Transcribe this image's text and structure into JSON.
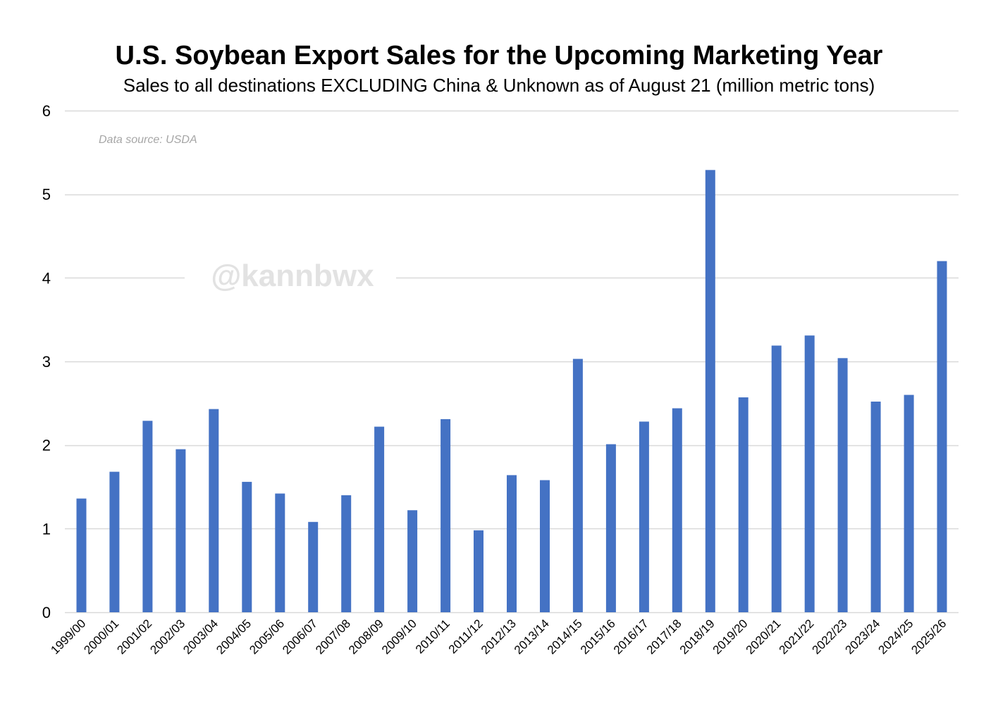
{
  "chart_data": {
    "type": "bar",
    "title": "U.S. Soybean Export Sales for the Upcoming Marketing Year",
    "subtitle": "Sales to all destinations EXCLUDING China & Unknown as of August 21 (million metric tons)",
    "source_note": "Data source: USDA",
    "watermark": "@kannbwx",
    "xlabel": "",
    "ylabel": "",
    "ylim": [
      0,
      6
    ],
    "yticks": [
      0,
      1,
      2,
      3,
      4,
      5,
      6
    ],
    "grid": true,
    "legend": "none",
    "bar_color": "#4472C4",
    "grid_color": "#D9D9D9",
    "categories": [
      "1999/00",
      "2000/01",
      "2001/02",
      "2002/03",
      "2003/04",
      "2004/05",
      "2005/06",
      "2006/07",
      "2007/08",
      "2008/09",
      "2009/10",
      "2010/11",
      "2011/12",
      "2012/13",
      "2013/14",
      "2014/15",
      "2015/16",
      "2016/17",
      "2017/18",
      "2018/19",
      "2019/20",
      "2020/21",
      "2021/22",
      "2022/23",
      "2023/24",
      "2024/25",
      "2025/26"
    ],
    "values": [
      1.36,
      1.68,
      2.29,
      1.95,
      2.43,
      1.56,
      1.42,
      1.08,
      1.4,
      2.22,
      1.22,
      2.31,
      0.98,
      1.64,
      1.58,
      3.03,
      2.01,
      2.28,
      2.44,
      5.29,
      2.57,
      3.19,
      3.31,
      3.04,
      2.52,
      2.6,
      4.2
    ]
  }
}
